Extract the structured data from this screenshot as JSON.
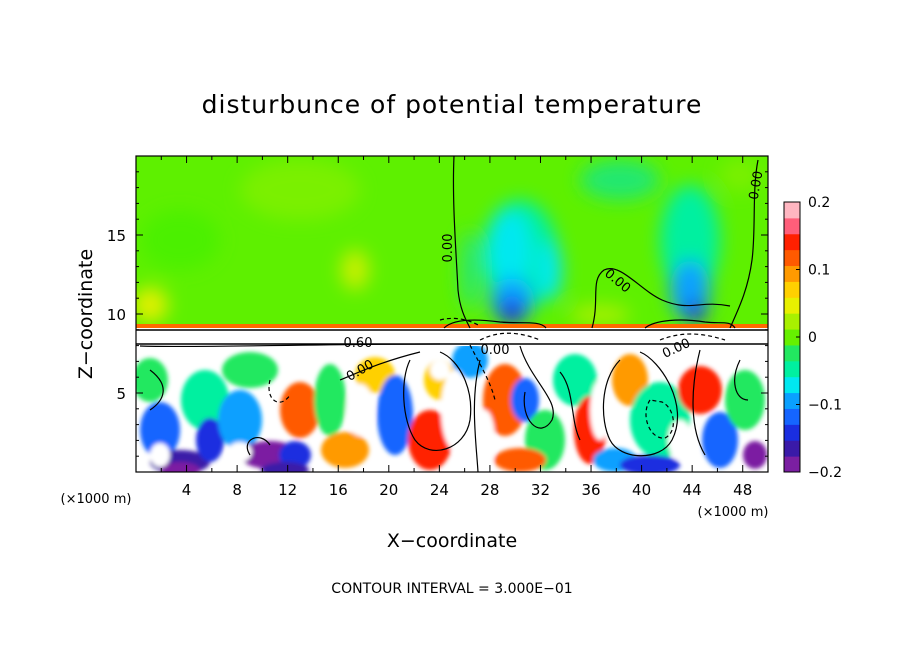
{
  "chart_data": {
    "type": "heatmap",
    "title": "disturbunce of potential temperature",
    "xlabel": "X−coordinate",
    "ylabel": "Z−coordinate",
    "x_unit_left": "(×1000 m)",
    "x_unit_right": "(×1000 m)",
    "xlim": [
      0,
      50
    ],
    "ylim": [
      0,
      20
    ],
    "x_ticks": [
      "4",
      "8",
      "12",
      "16",
      "20",
      "24",
      "28",
      "32",
      "36",
      "40",
      "44",
      "48"
    ],
    "x_tick_values": [
      4,
      8,
      12,
      16,
      20,
      24,
      28,
      32,
      36,
      40,
      44,
      48
    ],
    "y_ticks": [
      "5",
      "10",
      "15"
    ],
    "y_tick_values": [
      5,
      10,
      15
    ],
    "colorbar": {
      "range": [
        -0.2,
        0.2
      ],
      "tick_labels": [
        "0.2",
        "0.1",
        "0",
        "−0.1",
        "−0.2"
      ],
      "tick_values": [
        0.2,
        0.1,
        0,
        -0.1,
        -0.2
      ],
      "colors": [
        "#7b1fa2",
        "#3a1aa8",
        "#1a2ee0",
        "#1565ff",
        "#0aa0ff",
        "#00e8f0",
        "#00f0a0",
        "#22e860",
        "#66f000",
        "#a8f000",
        "#e8f000",
        "#ffd000",
        "#ff9a00",
        "#ff5a00",
        "#ff2000",
        "#ff5e7a",
        "#ffb6c1"
      ]
    },
    "contour_labels": [
      "0.00",
      "0.00",
      "0.00",
      "0.00",
      "0.60",
      "0.00",
      "0.00"
    ],
    "contour_interval": "CONTOUR INTERVAL = 3.000E−01",
    "grid": false
  }
}
